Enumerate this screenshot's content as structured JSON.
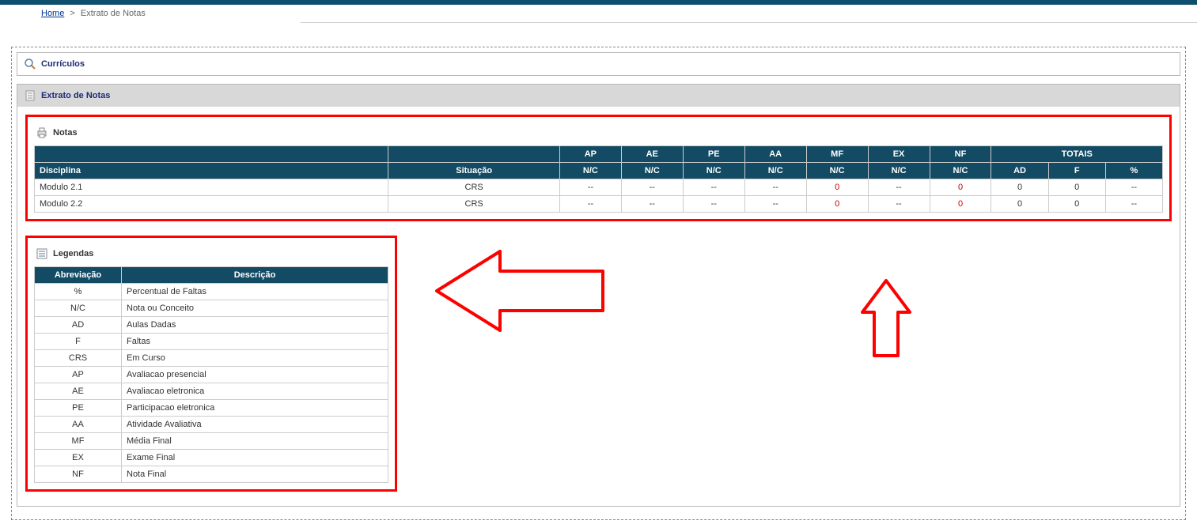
{
  "colors": {
    "topbar": "#0d4f6c",
    "header_bg": "#134b64",
    "header_text": "#ffffff",
    "border": "#cccccc",
    "panel_border": "#b8b8b8",
    "dashed_border": "#888888",
    "panel_title": "#1a2c77",
    "link": "#003399",
    "annotation": "#ff0000",
    "zero_value": "#cc0000",
    "gray_panel": "#d8d8d8"
  },
  "breadcrumb": {
    "home_label": "Home",
    "sep": ">",
    "current": "Extrato de Notas"
  },
  "panels": {
    "curriculos": {
      "title": "Currículos",
      "icon": "search-icon"
    },
    "extrato": {
      "title": "Extrato de Notas",
      "icon": "document-icon"
    }
  },
  "notas": {
    "title": "Notas",
    "icon": "printer-icon",
    "header_row1": {
      "disciplina_blank": "",
      "situacao_blank": "",
      "cols": [
        "AP",
        "AE",
        "PE",
        "AA",
        "MF",
        "EX",
        "NF"
      ],
      "totais": "TOTAIS"
    },
    "header_row2": {
      "disciplina": "Disciplina",
      "situacao": "Situação",
      "nc_cols": [
        "N/C",
        "N/C",
        "N/C",
        "N/C",
        "N/C",
        "N/C",
        "N/C"
      ],
      "totais_sub": [
        "AD",
        "F",
        "%"
      ]
    },
    "col_widths": {
      "disciplina": "31%",
      "situacao": "15%",
      "metric": "5.4%",
      "totais_sub": "5%"
    },
    "rows": [
      {
        "disciplina": "Modulo 2.1",
        "situacao": "CRS",
        "vals": [
          "--",
          "--",
          "--",
          "--",
          "0",
          "--",
          "0"
        ],
        "red_flags": [
          false,
          false,
          false,
          false,
          true,
          false,
          true
        ],
        "totais": [
          "0",
          "0",
          "--"
        ]
      },
      {
        "disciplina": "Modulo 2.2",
        "situacao": "CRS",
        "vals": [
          "--",
          "--",
          "--",
          "--",
          "0",
          "--",
          "0"
        ],
        "red_flags": [
          false,
          false,
          false,
          false,
          true,
          false,
          true
        ],
        "totais": [
          "0",
          "0",
          "--"
        ]
      }
    ]
  },
  "legendas": {
    "title": "Legendas",
    "icon": "list-icon",
    "headers": {
      "abbr": "Abreviação",
      "desc": "Descrição"
    },
    "rows": [
      {
        "abbr": "%",
        "desc": "Percentual de Faltas"
      },
      {
        "abbr": "N/C",
        "desc": "Nota ou Conceito"
      },
      {
        "abbr": "AD",
        "desc": "Aulas Dadas"
      },
      {
        "abbr": "F",
        "desc": "Faltas"
      },
      {
        "abbr": "CRS",
        "desc": "Em Curso"
      },
      {
        "abbr": "AP",
        "desc": "Avaliacao presencial"
      },
      {
        "abbr": "AE",
        "desc": "Avaliacao eletronica"
      },
      {
        "abbr": "PE",
        "desc": "Participacao eletronica"
      },
      {
        "abbr": "AA",
        "desc": "Atividade Avaliativa"
      },
      {
        "abbr": "MF",
        "desc": "Média Final"
      },
      {
        "abbr": "EX",
        "desc": "Exame Final"
      },
      {
        "abbr": "NF",
        "desc": "Nota Final"
      }
    ]
  },
  "annotations": {
    "arrow_left": {
      "stroke": "#ff0000",
      "stroke_width": 4
    },
    "arrow_up": {
      "stroke": "#ff0000",
      "stroke_width": 4
    }
  }
}
